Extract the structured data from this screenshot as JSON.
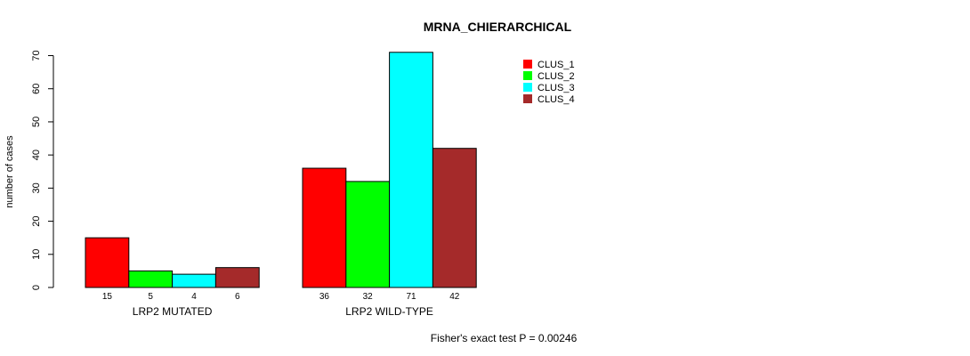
{
  "chart_data": {
    "type": "bar",
    "title": "MRNA_CHIERARCHICAL",
    "ylabel": "number of cases",
    "xlabel": "",
    "ylim": [
      0,
      70
    ],
    "yticks": [
      0,
      10,
      20,
      30,
      40,
      50,
      60,
      70
    ],
    "categories": [
      "LRP2 MUTATED",
      "LRP2 WILD-TYPE"
    ],
    "series": [
      {
        "name": "CLUS_1",
        "color": "#ff0000",
        "values": [
          15,
          36
        ]
      },
      {
        "name": "CLUS_2",
        "color": "#00ff00",
        "values": [
          5,
          32
        ]
      },
      {
        "name": "CLUS_3",
        "color": "#00ffff",
        "values": [
          4,
          71
        ]
      },
      {
        "name": "CLUS_4",
        "color": "#a52a2a",
        "values": [
          6,
          42
        ]
      }
    ],
    "count_labels": [
      [
        "15",
        "5",
        "4",
        "6"
      ],
      [
        "36",
        "32",
        "71",
        "42"
      ]
    ],
    "legend_position": "top-right",
    "annotation": "Fisher's exact test P = 0.00246"
  }
}
